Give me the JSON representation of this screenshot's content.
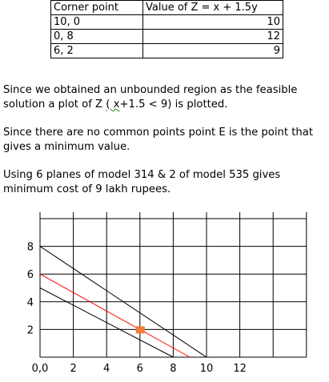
{
  "table": {
    "headers": [
      "Corner point",
      "Value of Z = x + 1.5y"
    ],
    "rows": [
      {
        "point": "10, 0",
        "value": "10"
      },
      {
        "point": "0, 8",
        "value": "12"
      },
      {
        "point": "6, 2",
        "value": "9"
      }
    ]
  },
  "paragraphs": {
    "p1_before": "Since we obtained an unbounded region as the feasible solution a plot of Z ",
    "p1_squiggle": "( x",
    "p1_after": "+1.5  < 9) is plotted.",
    "p2": "Since there are no common points point E is the point that gives  a minimum value.",
    "p3": "Using 6 planes of model 314 & 2 of model 535 gives minimum cost of 9 lakh rupees."
  },
  "chart_data": {
    "type": "line",
    "x_tick_labels": [
      "0,0",
      "2",
      "4",
      "6",
      "8",
      "10",
      "12"
    ],
    "y_tick_labels": [
      "2",
      "4",
      "6",
      "8"
    ],
    "xlim": [
      0,
      16
    ],
    "ylim": [
      0,
      10
    ],
    "grid": true,
    "series": [
      {
        "color": "#000000",
        "points": [
          [
            0,
            8
          ],
          [
            10,
            0
          ]
        ]
      },
      {
        "color": "#000000",
        "points": [
          [
            0,
            5
          ],
          [
            8,
            0
          ]
        ]
      },
      {
        "color": "#ff0000",
        "points": [
          [
            0,
            6
          ],
          [
            9,
            0
          ]
        ]
      }
    ],
    "marker": {
      "x": 6,
      "y": 2,
      "color": "#f07c3c"
    }
  }
}
